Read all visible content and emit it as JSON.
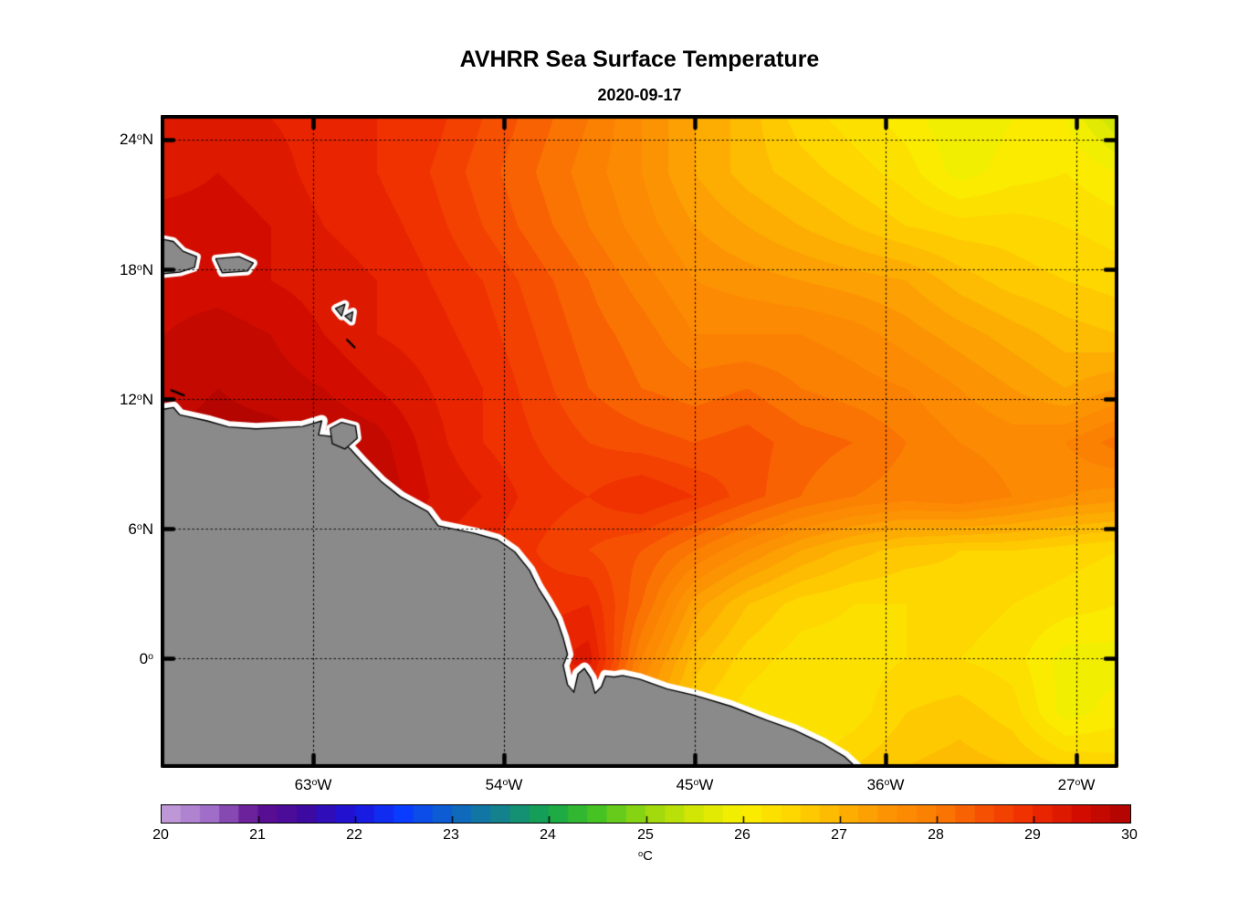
{
  "header": {
    "title": "AVHRR Sea Surface Temperature",
    "subtitle": "2020-09-17"
  },
  "axes": {
    "lat_ticks": [
      {
        "pre": "24",
        "deg": "o",
        "post": "N"
      },
      {
        "pre": "18",
        "deg": "o",
        "post": "N"
      },
      {
        "pre": "12",
        "deg": "o",
        "post": "N"
      },
      {
        "pre": "6",
        "deg": "o",
        "post": "N"
      },
      {
        "pre": "0",
        "deg": "o",
        "post": ""
      }
    ],
    "lon_ticks": [
      {
        "pre": "63",
        "deg": "o",
        "post": "W"
      },
      {
        "pre": "54",
        "deg": "o",
        "post": "W"
      },
      {
        "pre": "45",
        "deg": "o",
        "post": "W"
      },
      {
        "pre": "36",
        "deg": "o",
        "post": "W"
      },
      {
        "pre": "27",
        "deg": "o",
        "post": "W"
      }
    ]
  },
  "colorbar": {
    "min": 20,
    "max": 30,
    "step": 0.2,
    "tick_labels": [
      "20",
      "21",
      "22",
      "23",
      "24",
      "25",
      "26",
      "27",
      "28",
      "29",
      "30"
    ],
    "unit": {
      "deg": "o",
      "post": "C"
    }
  },
  "chart_data": {
    "type": "heatmap",
    "title": "AVHRR Sea Surface Temperature",
    "subtitle": "2020-09-17",
    "units": "degC",
    "lon_range": [
      -70.2,
      -25.0
    ],
    "lat_range": [
      -5.05,
      25.15
    ],
    "gridline_lons": [
      -63,
      -54,
      -45,
      -36,
      -27
    ],
    "gridline_lats": [
      24,
      18,
      12,
      6,
      0
    ],
    "grid_on": true,
    "legend_position": "bottom-colorbar",
    "value_range": [
      20,
      30
    ],
    "grid_lons": [
      -70,
      -67.5,
      -65,
      -62.5,
      -60,
      -57.5,
      -55,
      -52.5,
      -50,
      -47.5,
      -45,
      -42.5,
      -40,
      -37.5,
      -35,
      -32.5,
      -30,
      -27.5,
      -25
    ],
    "grid_lats": [
      25,
      22.5,
      20,
      17.5,
      15,
      12.5,
      10,
      7.5,
      5,
      2.5,
      0,
      -2.5,
      -5
    ],
    "sst_values": [
      [
        29.2,
        29.3,
        29.2,
        29.1,
        29.0,
        28.9,
        28.6,
        28.3,
        28.0,
        27.6,
        27.2,
        26.9,
        26.5,
        26.3,
        26.1,
        25.8,
        26.0,
        26.0,
        25.4
      ],
      [
        29.3,
        29.4,
        29.3,
        29.1,
        29.0,
        28.8,
        28.5,
        28.2,
        27.9,
        27.6,
        27.2,
        26.9,
        26.7,
        26.5,
        26.3,
        25.9,
        26.1,
        26.2,
        26.0
      ],
      [
        29.5,
        29.5,
        29.4,
        29.2,
        29.1,
        28.9,
        28.6,
        28.3,
        28.0,
        27.7,
        27.4,
        27.2,
        27.0,
        26.8,
        26.6,
        26.5,
        26.5,
        26.4,
        26.3
      ],
      [
        29.5,
        29.5,
        29.4,
        29.3,
        29.2,
        29.0,
        28.8,
        28.5,
        28.2,
        27.9,
        27.6,
        27.5,
        27.4,
        27.3,
        27.2,
        26.9,
        26.7,
        26.6,
        26.5
      ],
      [
        29.6,
        29.7,
        29.6,
        29.4,
        29.2,
        29.1,
        28.9,
        28.6,
        28.3,
        28.1,
        27.8,
        27.8,
        27.8,
        27.7,
        27.5,
        27.3,
        27.1,
        26.9,
        26.8
      ],
      [
        29.7,
        29.8,
        29.7,
        29.6,
        29.4,
        29.2,
        29.0,
        28.7,
        28.4,
        28.2,
        28.1,
        28.2,
        28.0,
        27.9,
        27.8,
        27.6,
        27.4,
        27.2,
        27.4
      ],
      [
        29.8,
        29.9,
        29.9,
        29.8,
        29.7,
        29.3,
        29.0,
        28.8,
        28.6,
        28.5,
        28.4,
        28.5,
        28.3,
        28.2,
        28.0,
        27.8,
        27.7,
        27.8,
        28.1
      ],
      [
        29.9,
        29.9,
        29.9,
        29.9,
        29.8,
        29.4,
        29.2,
        28.9,
        28.8,
        29.0,
        28.8,
        28.5,
        28.2,
        28.0,
        27.9,
        28.0,
        27.8,
        27.6,
        27.5
      ],
      [
        30.0,
        30.0,
        29.9,
        29.8,
        29.5,
        29.2,
        29.0,
        28.8,
        28.6,
        28.4,
        28.0,
        27.6,
        27.2,
        26.9,
        26.7,
        26.6,
        26.6,
        26.5,
        26.4
      ],
      [
        30.0,
        30.0,
        29.9,
        29.8,
        29.4,
        29.0,
        28.8,
        28.9,
        29.0,
        28.2,
        27.3,
        26.8,
        26.5,
        26.4,
        26.4,
        26.5,
        26.4,
        26.3,
        26.2
      ],
      [
        30.0,
        30.0,
        29.9,
        29.7,
        29.3,
        29.0,
        28.8,
        29.1,
        29.3,
        27.8,
        26.9,
        26.5,
        26.3,
        26.3,
        26.4,
        26.4,
        26.3,
        25.9,
        25.9
      ],
      [
        29.5,
        29.5,
        29.4,
        29.3,
        29.2,
        29.0,
        28.9,
        28.9,
        28.8,
        27.4,
        26.6,
        26.3,
        26.2,
        26.3,
        26.6,
        26.7,
        26.5,
        25.9,
        26.1
      ],
      [
        29.0,
        29.0,
        29.0,
        29.0,
        29.0,
        28.9,
        28.8,
        28.5,
        28.0,
        27.0,
        26.5,
        26.3,
        26.3,
        26.6,
        26.8,
        26.9,
        26.8,
        26.6,
        26.5
      ]
    ],
    "colormap_stops": [
      [
        20.0,
        198,
        163,
        217
      ],
      [
        20.5,
        160,
        110,
        200
      ],
      [
        21.0,
        95,
        15,
        143
      ],
      [
        21.5,
        60,
        10,
        160
      ],
      [
        22.0,
        28,
        20,
        220
      ],
      [
        22.5,
        10,
        60,
        255
      ],
      [
        23.0,
        15,
        100,
        200
      ],
      [
        23.5,
        20,
        130,
        140
      ],
      [
        24.0,
        20,
        165,
        75
      ],
      [
        24.5,
        70,
        195,
        35
      ],
      [
        25.0,
        150,
        215,
        15
      ],
      [
        25.5,
        210,
        230,
        5
      ],
      [
        26.0,
        250,
        240,
        0
      ],
      [
        26.5,
        254,
        215,
        0
      ],
      [
        27.0,
        253,
        180,
        2
      ],
      [
        27.5,
        252,
        147,
        3
      ],
      [
        28.0,
        251,
        125,
        3
      ],
      [
        28.5,
        246,
        80,
        2
      ],
      [
        29.0,
        238,
        42,
        1
      ],
      [
        29.5,
        210,
        13,
        0
      ],
      [
        30.0,
        172,
        3,
        0
      ]
    ],
    "land_color": "#8a8a8a",
    "coast_line_color": "#000000",
    "coast_buffer_color": "#ffffff",
    "land": {
      "mainland_coast": [
        [
          -70.3,
          11.5
        ],
        [
          -69.6,
          11.62
        ],
        [
          -69.3,
          11.28
        ],
        [
          -68.0,
          11.0
        ],
        [
          -67.0,
          10.72
        ],
        [
          -65.7,
          10.63
        ],
        [
          -64.3,
          10.7
        ],
        [
          -63.5,
          10.74
        ],
        [
          -62.6,
          11.0
        ],
        [
          -62.75,
          10.35
        ],
        [
          -61.9,
          10.25
        ],
        [
          -61.25,
          9.7
        ],
        [
          -60.6,
          9.0
        ],
        [
          -59.8,
          8.2
        ],
        [
          -58.9,
          7.5
        ],
        [
          -57.6,
          6.8
        ],
        [
          -57.1,
          6.15
        ],
        [
          -55.4,
          5.8
        ],
        [
          -54.3,
          5.5
        ],
        [
          -53.5,
          4.95
        ],
        [
          -52.8,
          4.1
        ],
        [
          -52.4,
          3.3
        ],
        [
          -51.95,
          2.6
        ],
        [
          -51.5,
          1.8
        ],
        [
          -51.2,
          0.95
        ],
        [
          -51.0,
          0.2
        ],
        [
          -51.2,
          -0.3
        ],
        [
          -51.0,
          -1.2
        ],
        [
          -50.7,
          -1.55
        ],
        [
          -50.5,
          -0.7
        ],
        [
          -50.2,
          -0.45
        ],
        [
          -49.9,
          -0.9
        ],
        [
          -49.7,
          -1.6
        ],
        [
          -49.4,
          -1.3
        ],
        [
          -49.2,
          -0.8
        ],
        [
          -48.8,
          -0.85
        ],
        [
          -48.4,
          -0.78
        ],
        [
          -47.6,
          -0.95
        ],
        [
          -46.3,
          -1.4
        ],
        [
          -45.0,
          -1.7
        ],
        [
          -43.3,
          -2.2
        ],
        [
          -41.6,
          -2.85
        ],
        [
          -40.3,
          -3.3
        ],
        [
          -39.0,
          -3.9
        ],
        [
          -37.9,
          -4.55
        ],
        [
          -37.3,
          -5.1
        ]
      ],
      "mainland_close": [
        [
          -37.2,
          -5.6
        ],
        [
          -70.4,
          -5.6
        ]
      ],
      "islands": [
        [
          [
            -62.2,
            10.65
          ],
          [
            -61.66,
            10.93
          ],
          [
            -61.0,
            10.76
          ],
          [
            -60.92,
            10.2
          ],
          [
            -61.5,
            9.7
          ],
          [
            -62.1,
            9.95
          ]
        ],
        [
          [
            -70.35,
            19.45
          ],
          [
            -69.6,
            19.3
          ],
          [
            -69.15,
            18.85
          ],
          [
            -68.5,
            18.6
          ],
          [
            -68.6,
            18.1
          ],
          [
            -69.3,
            17.88
          ],
          [
            -70.35,
            17.78
          ]
        ],
        [
          [
            -67.6,
            18.5
          ],
          [
            -66.5,
            18.6
          ],
          [
            -65.83,
            18.3
          ],
          [
            -66.1,
            17.93
          ],
          [
            -67.3,
            17.85
          ]
        ],
        [
          [
            -61.95,
            16.2
          ],
          [
            -61.5,
            16.4
          ],
          [
            -61.66,
            15.85
          ]
        ],
        [
          [
            -61.5,
            15.85
          ],
          [
            -61.13,
            16.05
          ],
          [
            -61.2,
            15.6
          ]
        ]
      ],
      "islets": [
        [
          [
            -61.4,
            14.75
          ],
          [
            -61.05,
            14.4
          ]
        ],
        [
          [
            -69.7,
            12.42
          ],
          [
            -69.1,
            12.18
          ]
        ]
      ]
    }
  }
}
